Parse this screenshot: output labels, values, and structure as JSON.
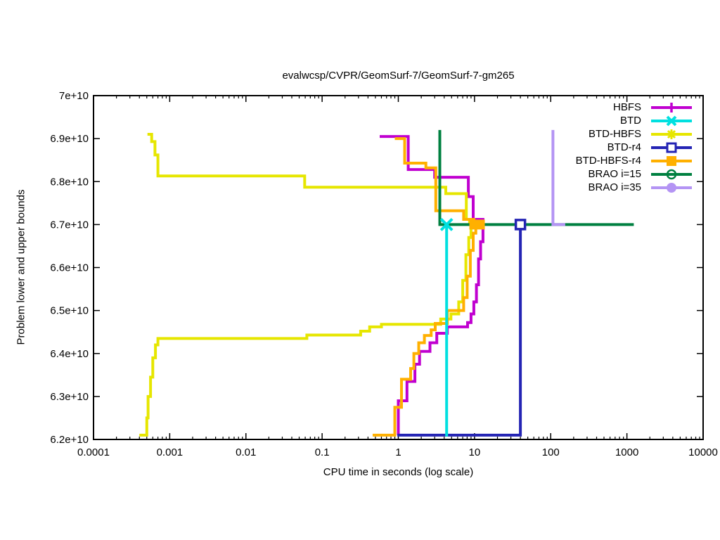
{
  "chart": {
    "title": "evalwcsp/CVPR/GeomSurf-7/GeomSurf-7-gm265",
    "xlabel": "CPU time in seconds (log scale)",
    "ylabel": "Problem lower and upper bounds"
  },
  "chart_data": {
    "type": "line",
    "title": "evalwcsp/CVPR/GeomSurf-7/GeomSurf-7-gm265",
    "xlabel": "CPU time in seconds (log scale)",
    "ylabel": "Problem lower and upper bounds",
    "x_scale": "log10",
    "xlim": [
      0.0001,
      10000
    ],
    "ylim_e10": [
      6.2,
      7.0
    ],
    "y_unit": "1e10",
    "grid": false,
    "legend_position": "top-right-inside",
    "xticks": [
      {
        "label": "0.0001",
        "t": 0.0001
      },
      {
        "label": "0.001",
        "t": 0.001
      },
      {
        "label": "0.01",
        "t": 0.01
      },
      {
        "label": "0.1",
        "t": 0.1
      },
      {
        "label": "1",
        "t": 1
      },
      {
        "label": "10",
        "t": 10
      },
      {
        "label": "100",
        "t": 100
      },
      {
        "label": "1000",
        "t": 1000
      },
      {
        "label": "10000",
        "t": 10000
      }
    ],
    "yticks": [
      {
        "label": "6.2e+10",
        "v": 6.2
      },
      {
        "label": "6.3e+10",
        "v": 6.3
      },
      {
        "label": "6.4e+10",
        "v": 6.4
      },
      {
        "label": "6.5e+10",
        "v": 6.5
      },
      {
        "label": "6.6e+10",
        "v": 6.6
      },
      {
        "label": "6.7e+10",
        "v": 6.7
      },
      {
        "label": "6.8e+10",
        "v": 6.8
      },
      {
        "label": "6.9e+10",
        "v": 6.9
      },
      {
        "label": "7e+10",
        "v": 7.0
      }
    ],
    "series": [
      {
        "name": "HBFS",
        "color": "#c000d0",
        "marker": "plus",
        "z": 1,
        "upper": [
          [
            0.57,
            6.905
          ],
          [
            1.35,
            6.905
          ],
          [
            1.35,
            6.828
          ],
          [
            3.0,
            6.828
          ],
          [
            3.0,
            6.81
          ],
          [
            8.3,
            6.81
          ],
          [
            8.3,
            6.765
          ],
          [
            9.6,
            6.765
          ],
          [
            9.6,
            6.712
          ],
          [
            12.9,
            6.712
          ],
          [
            12.9,
            6.7
          ],
          [
            13.5,
            6.7
          ]
        ],
        "lower": [
          [
            1.0,
            6.21
          ],
          [
            1.0,
            6.29
          ],
          [
            1.3,
            6.29
          ],
          [
            1.3,
            6.335
          ],
          [
            1.65,
            6.335
          ],
          [
            1.65,
            6.375
          ],
          [
            1.9,
            6.375
          ],
          [
            1.9,
            6.405
          ],
          [
            2.6,
            6.405
          ],
          [
            2.6,
            6.425
          ],
          [
            3.2,
            6.425
          ],
          [
            3.2,
            6.447
          ],
          [
            4.4,
            6.447
          ],
          [
            4.4,
            6.462
          ],
          [
            8.1,
            6.462
          ],
          [
            8.1,
            6.472
          ],
          [
            9.0,
            6.472
          ],
          [
            9.0,
            6.492
          ],
          [
            9.8,
            6.492
          ],
          [
            9.8,
            6.52
          ],
          [
            10.6,
            6.52
          ],
          [
            10.6,
            6.56
          ],
          [
            11.3,
            6.56
          ],
          [
            11.3,
            6.62
          ],
          [
            12.0,
            6.62
          ],
          [
            12.0,
            6.66
          ],
          [
            12.9,
            6.66
          ],
          [
            12.9,
            6.7
          ],
          [
            13.5,
            6.7
          ]
        ]
      },
      {
        "name": "BTD",
        "color": "#00e0e0",
        "marker": "cross",
        "z": 7,
        "lower": [
          [
            4.3,
            6.207
          ],
          [
            4.3,
            6.7
          ]
        ],
        "endpoint": [
          4.3,
          6.7
        ]
      },
      {
        "name": "BTD-HBFS",
        "color": "#e6e600",
        "marker": "star",
        "z": 2,
        "upper": [
          [
            0.00051,
            6.91
          ],
          [
            0.00058,
            6.91
          ],
          [
            0.00058,
            6.893
          ],
          [
            0.00064,
            6.893
          ],
          [
            0.00064,
            6.862
          ],
          [
            0.0007,
            6.862
          ],
          [
            0.0007,
            6.813
          ],
          [
            0.059,
            6.813
          ],
          [
            0.059,
            6.787
          ],
          [
            4.2,
            6.787
          ],
          [
            4.2,
            6.772
          ],
          [
            7.8,
            6.772
          ],
          [
            7.8,
            6.712
          ],
          [
            8.6,
            6.712
          ],
          [
            8.6,
            6.7
          ],
          [
            9.5,
            6.7
          ]
        ],
        "lower": [
          [
            0.0004,
            6.21
          ],
          [
            0.0005,
            6.21
          ],
          [
            0.0005,
            6.25
          ],
          [
            0.00052,
            6.25
          ],
          [
            0.00052,
            6.3
          ],
          [
            0.00056,
            6.3
          ],
          [
            0.00056,
            6.345
          ],
          [
            0.0006,
            6.345
          ],
          [
            0.0006,
            6.39
          ],
          [
            0.00065,
            6.39
          ],
          [
            0.00065,
            6.42
          ],
          [
            0.0007,
            6.42
          ],
          [
            0.0007,
            6.435
          ],
          [
            0.063,
            6.435
          ],
          [
            0.063,
            6.443
          ],
          [
            0.32,
            6.443
          ],
          [
            0.32,
            6.452
          ],
          [
            0.42,
            6.452
          ],
          [
            0.42,
            6.462
          ],
          [
            0.6,
            6.462
          ],
          [
            0.6,
            6.468
          ],
          [
            3.6,
            6.468
          ],
          [
            3.6,
            6.48
          ],
          [
            4.9,
            6.48
          ],
          [
            4.9,
            6.492
          ],
          [
            6.2,
            6.492
          ],
          [
            6.2,
            6.52
          ],
          [
            7.0,
            6.52
          ],
          [
            7.0,
            6.57
          ],
          [
            7.7,
            6.57
          ],
          [
            7.7,
            6.63
          ],
          [
            8.4,
            6.63
          ],
          [
            8.4,
            6.67
          ],
          [
            9.0,
            6.67
          ],
          [
            9.0,
            6.7
          ],
          [
            9.5,
            6.7
          ]
        ]
      },
      {
        "name": "BTD-r4",
        "color": "#2424b4",
        "marker": "square-open",
        "z": 6,
        "lower": [
          [
            0.97,
            6.21
          ],
          [
            40,
            6.21
          ],
          [
            40,
            6.7
          ]
        ],
        "endpoint": [
          40,
          6.7
        ]
      },
      {
        "name": "BTD-HBFS-r4",
        "color": "#ffb000",
        "marker": "square-filled",
        "z": 3,
        "upper": [
          [
            0.9,
            6.9
          ],
          [
            1.21,
            6.9
          ],
          [
            1.21,
            6.843
          ],
          [
            2.3,
            6.843
          ],
          [
            2.3,
            6.832
          ],
          [
            3.1,
            6.832
          ],
          [
            3.1,
            6.732
          ],
          [
            7.2,
            6.732
          ],
          [
            7.2,
            6.712
          ],
          [
            9.8,
            6.712
          ],
          [
            9.8,
            6.7
          ],
          [
            10.8,
            6.7
          ]
        ],
        "lower": [
          [
            0.46,
            6.21
          ],
          [
            0.9,
            6.21
          ],
          [
            0.9,
            6.275
          ],
          [
            1.1,
            6.275
          ],
          [
            1.1,
            6.34
          ],
          [
            1.45,
            6.34
          ],
          [
            1.45,
            6.365
          ],
          [
            1.6,
            6.365
          ],
          [
            1.6,
            6.4
          ],
          [
            1.85,
            6.4
          ],
          [
            1.85,
            6.425
          ],
          [
            2.2,
            6.425
          ],
          [
            2.2,
            6.442
          ],
          [
            2.7,
            6.442
          ],
          [
            2.7,
            6.455
          ],
          [
            3.05,
            6.455
          ],
          [
            3.05,
            6.47
          ],
          [
            4.4,
            6.47
          ],
          [
            4.4,
            6.5
          ],
          [
            7.2,
            6.5
          ],
          [
            7.2,
            6.53
          ],
          [
            8.0,
            6.53
          ],
          [
            8.0,
            6.58
          ],
          [
            8.8,
            6.58
          ],
          [
            8.8,
            6.64
          ],
          [
            9.6,
            6.64
          ],
          [
            9.6,
            6.68
          ],
          [
            10.4,
            6.68
          ],
          [
            10.4,
            6.7
          ],
          [
            10.8,
            6.7
          ]
        ],
        "endpoint": [
          10.8,
          6.7
        ]
      },
      {
        "name": "BRAO i=15",
        "color": "#008040",
        "marker": "circle-dash",
        "z": 4,
        "path": [
          [
            3.5,
            6.92
          ],
          [
            3.5,
            6.7
          ],
          [
            1230,
            6.7
          ]
        ]
      },
      {
        "name": "BRAO i=35",
        "color": "#b494f4",
        "marker": "circle-filled",
        "z": 5,
        "path": [
          [
            107,
            6.92
          ],
          [
            107,
            6.7
          ],
          [
            155,
            6.7
          ]
        ]
      }
    ]
  }
}
